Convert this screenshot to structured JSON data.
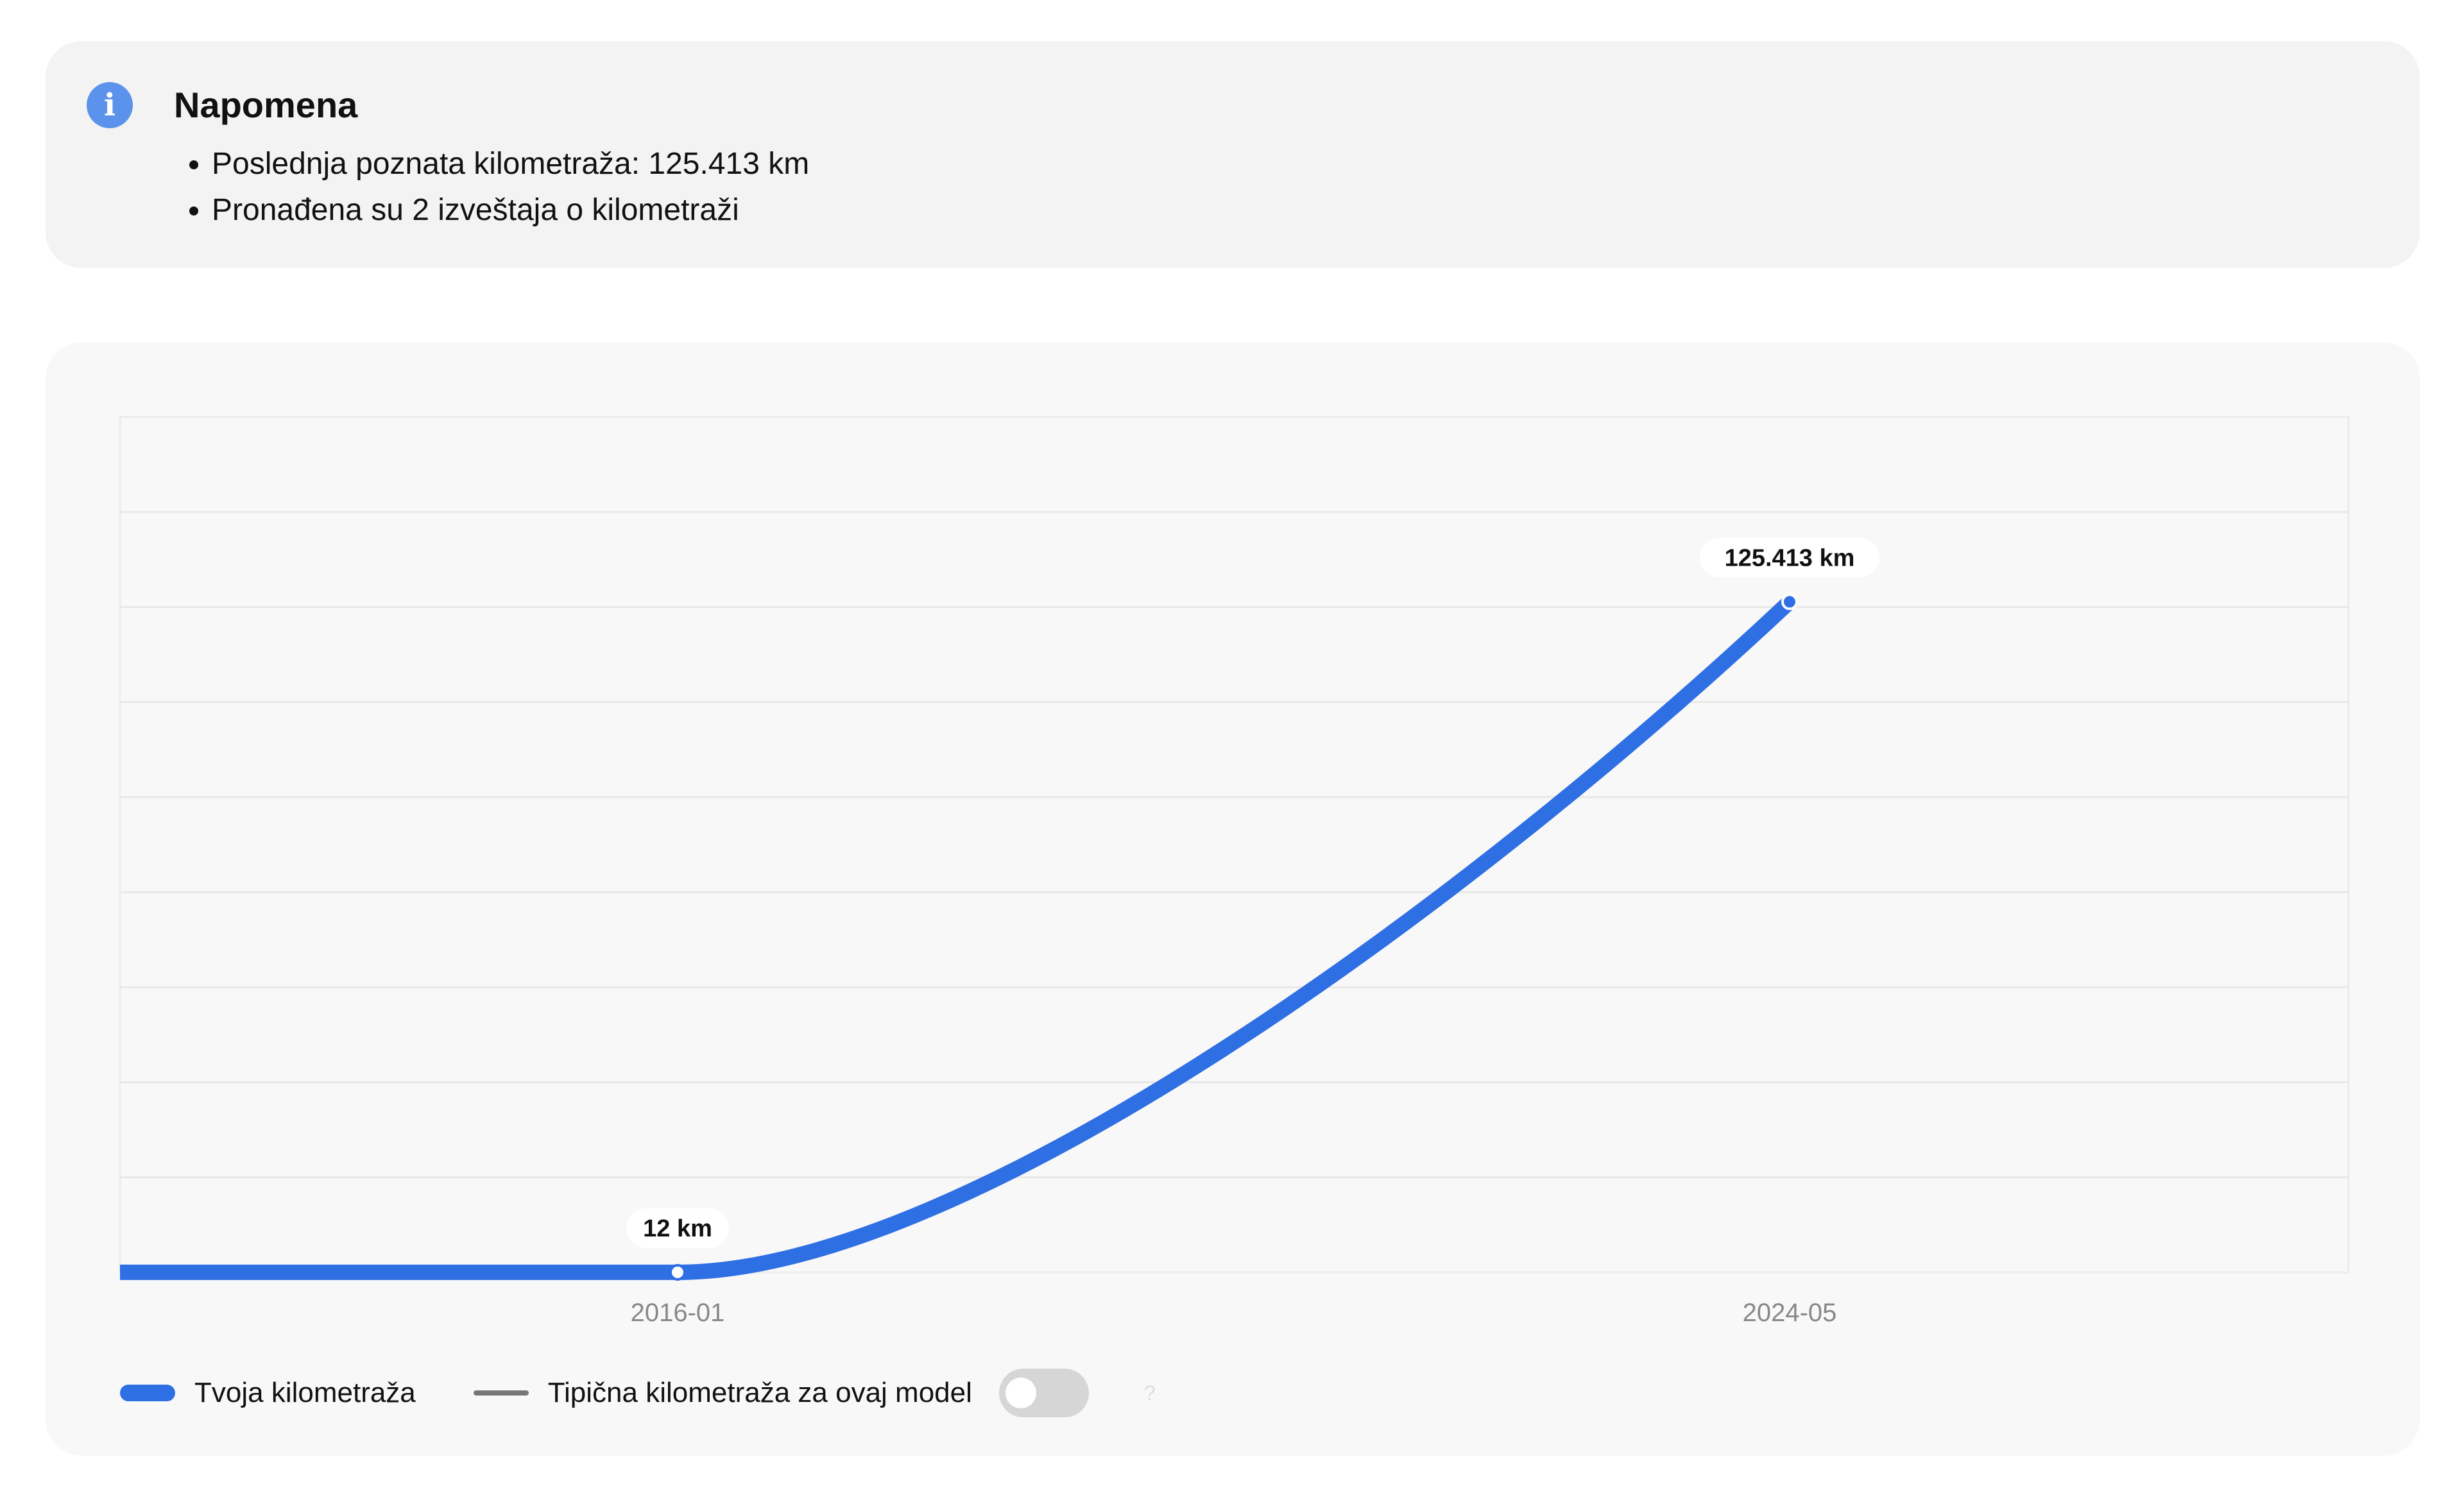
{
  "note": {
    "icon": "info-icon",
    "title": "Napomena",
    "items": [
      "Poslednja poznata kilometraža: 125.413 km",
      "Pronađena su 2 izveštaja o kilometraži"
    ]
  },
  "chart_data": {
    "type": "line",
    "x": [
      "2016-01",
      "2024-05"
    ],
    "series": [
      {
        "name": "Tvoja kilometraža",
        "values": [
          12,
          125413
        ],
        "labels": [
          "12 km",
          "125.413 km"
        ],
        "color": "#2f6fe4"
      }
    ],
    "x_ticks": [
      "2016-01",
      "2024-05"
    ],
    "ylim": [
      0,
      160000
    ],
    "grid": true,
    "smooth": true,
    "legend_position": "bottom-left"
  },
  "legend": {
    "own": "Tvoja kilometraža",
    "typical": "Tipična kilometraža za ovaj model",
    "typical_toggle_on": false,
    "help": "?"
  }
}
